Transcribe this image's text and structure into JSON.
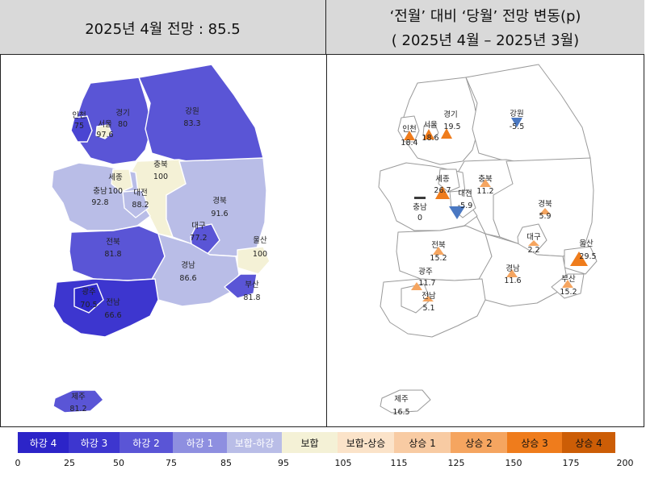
{
  "header": {
    "left_title": "2025년 4월 전망 : 85.5",
    "right_title_1": "‘전월’ 대비 ‘당월’ 전망 변동(p)",
    "right_title_2": "( 2025년 4월 –  2025년 3월)"
  },
  "left_map": {
    "regions": {
      "incheon": {
        "name": "인천",
        "value": "75"
      },
      "gyeonggi": {
        "name": "경기",
        "value": "80"
      },
      "seoul": {
        "name": "서울",
        "value": "97.6"
      },
      "gangwon": {
        "name": "강원",
        "value": "83.3"
      },
      "chungbuk": {
        "name": "충북",
        "value": "100"
      },
      "sejong": {
        "name": "세종",
        "value": "100"
      },
      "chungnam": {
        "name": "충남",
        "value": "92.8"
      },
      "daejeon": {
        "name": "대전",
        "value": "88.2"
      },
      "gyeongbuk": {
        "name": "경북",
        "value": "91.6"
      },
      "daegu": {
        "name": "대구",
        "value": "77.2"
      },
      "ulsan": {
        "name": "울산",
        "value": "100"
      },
      "jeonbuk": {
        "name": "전북",
        "value": "81.8"
      },
      "gyeongnam": {
        "name": "경남",
        "value": "86.6"
      },
      "busan": {
        "name": "부산",
        "value": "81.8"
      },
      "gwangju": {
        "name": "광주",
        "value": "70.5"
      },
      "jeonnam": {
        "name": "전남",
        "value": "66.6"
      },
      "jeju": {
        "name": "제주",
        "value": "81.2"
      }
    }
  },
  "right_map": {
    "regions": {
      "gyeonggi": {
        "name": "경기",
        "value": "19.5"
      },
      "seoul": {
        "name": "서울",
        "value": "18.6"
      },
      "incheon": {
        "name": "인천",
        "value": "18.4"
      },
      "gangwon": {
        "name": "강원",
        "value": "-5.5"
      },
      "sejong": {
        "name": "세종",
        "value": "26.7"
      },
      "chungbuk": {
        "name": "충북",
        "value": "11.2"
      },
      "chungnam": {
        "name": "충남",
        "value": "0"
      },
      "daejeon": {
        "name": "대전",
        "value": "-5.9"
      },
      "gyeongbuk": {
        "name": "경북",
        "value": "5.9"
      },
      "daegu": {
        "name": "대구",
        "value": "2.2"
      },
      "ulsan": {
        "name": "울산",
        "value": "29.5"
      },
      "jeonbuk": {
        "name": "전북",
        "value": "15.2"
      },
      "gwangju": {
        "name": "광주",
        "value": "11.7"
      },
      "jeonnam": {
        "name": "전남",
        "value": "5.1"
      },
      "gyeongnam": {
        "name": "경남",
        "value": "11.6"
      },
      "busan": {
        "name": "부산",
        "value": "15.2"
      },
      "jeju": {
        "name": "제주",
        "value": "16.5"
      }
    }
  },
  "legend": {
    "items": [
      {
        "label": "하강 4",
        "color": "#2c24c8"
      },
      {
        "label": "하강 3",
        "color": "#3d36cf"
      },
      {
        "label": "하강 2",
        "color": "#5a55d6"
      },
      {
        "label": "하강 1",
        "color": "#8e8fe0"
      },
      {
        "label": "보합-하강",
        "color": "#b9bde7"
      },
      {
        "label": "보합",
        "color": "#f4f1d6"
      },
      {
        "label": "보합-상승",
        "color": "#fbe3c9"
      },
      {
        "label": "상승 1",
        "color": "#f8cba3"
      },
      {
        "label": "상승 2",
        "color": "#f5a560"
      },
      {
        "label": "상승 3",
        "color": "#ef7c1c"
      },
      {
        "label": "상승 4",
        "color": "#cc5d06"
      }
    ],
    "ticks": [
      "0",
      "25",
      "50",
      "75",
      "85",
      "95",
      "105",
      "115",
      "125",
      "150",
      "175",
      "200"
    ]
  }
}
